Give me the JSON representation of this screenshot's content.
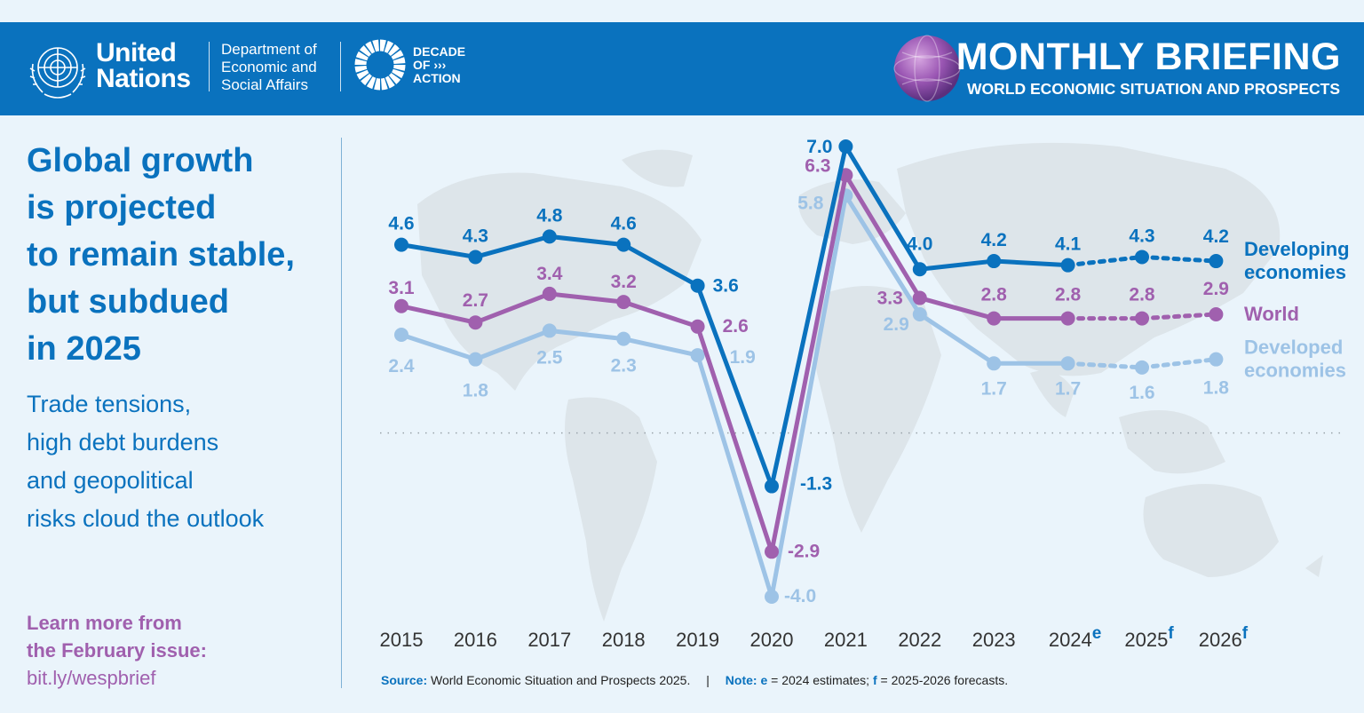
{
  "header": {
    "org_line1": "United",
    "org_line2": "Nations",
    "dept_line1": "Department of",
    "dept_line2": "Economic and",
    "dept_line3": "Social Affairs",
    "decade_line1": "DECADE",
    "decade_line2": "OF ›››",
    "decade_line3": "ACTION",
    "title": "MONTHLY BRIEFING",
    "subtitle": "WORLD ECONOMIC SITUATION AND PROSPECTS",
    "icons": [
      "un-emblem-icon",
      "decade-of-action-wheel-icon",
      "globe-icon"
    ]
  },
  "left": {
    "headline": [
      "Global growth",
      "is projected",
      "to remain stable,",
      "but subdued",
      "in 2025"
    ],
    "subhead": [
      "Trade tensions,",
      "high debt burdens",
      "and geopolitical",
      "risks cloud the outlook"
    ],
    "learn_line1": "Learn more from",
    "learn_line2": "the February issue:",
    "link": "bit.ly/wespbrief"
  },
  "footer": {
    "source_label": "Source:",
    "source_text": " World Economic Situation and Prospects 2025.",
    "separator": "|",
    "note_label": "Note:",
    "note_e": "e",
    "note_text1": " = 2024 estimates; ",
    "note_f": "f",
    "note_text2": " = 2025-2026 forecasts."
  },
  "colors": {
    "developing": "#0a72be",
    "world": "#a060ae",
    "developed": "#9dc3e6",
    "header_bg": "#0a72be",
    "background": "#eaf4fb"
  },
  "chart_data": {
    "type": "line",
    "x": [
      "2015",
      "2016",
      "2017",
      "2018",
      "2019",
      "2020",
      "2021",
      "2022",
      "2023",
      "2024",
      "2025",
      "2026"
    ],
    "x_superscripts": [
      "",
      "",
      "",
      "",
      "",
      "",
      "",
      "",
      "",
      "e",
      "f",
      "f"
    ],
    "forecast_start_index": 9,
    "ylim": [
      -4.0,
      7.0
    ],
    "zero_line": true,
    "series": [
      {
        "name": "Developing economies",
        "legend_lines": [
          "Developing",
          "economies"
        ],
        "color": "#0a72be",
        "values": [
          4.6,
          4.3,
          4.8,
          4.6,
          3.6,
          -1.3,
          7.0,
          4.0,
          4.2,
          4.1,
          4.3,
          4.2
        ],
        "labels": [
          "4.6",
          "4.3",
          "4.8",
          "4.6",
          "3.6",
          "-1.3",
          "7.0",
          "4.0",
          "4.2",
          "4.1",
          "4.3",
          "4.2"
        ]
      },
      {
        "name": "World",
        "legend_lines": [
          "World"
        ],
        "color": "#a060ae",
        "values": [
          3.1,
          2.7,
          3.4,
          3.2,
          2.6,
          -2.9,
          6.3,
          3.3,
          2.8,
          2.8,
          2.8,
          2.9
        ],
        "labels": [
          "3.1",
          "2.7",
          "3.4",
          "3.2",
          "2.6",
          "-2.9",
          "6.3",
          "3.3",
          "2.8",
          "2.8",
          "2.8",
          "2.9"
        ]
      },
      {
        "name": "Developed economies",
        "legend_lines": [
          "Developed",
          "economies"
        ],
        "color": "#9dc3e6",
        "values": [
          2.4,
          1.8,
          2.5,
          2.3,
          1.9,
          -4.0,
          5.8,
          2.9,
          1.7,
          1.7,
          1.6,
          1.8
        ],
        "labels": [
          "2.4",
          "1.8",
          "2.5",
          "2.3",
          "1.9",
          "-4.0",
          "5.8",
          "2.9",
          "1.7",
          "1.7",
          "1.6",
          "1.8"
        ]
      }
    ]
  }
}
